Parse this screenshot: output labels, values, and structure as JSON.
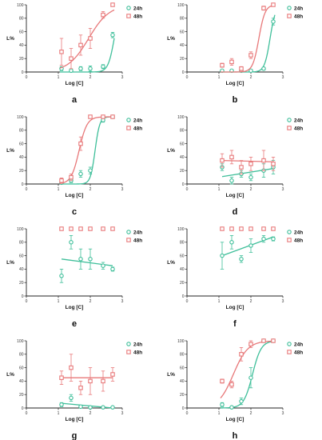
{
  "chart_data": [
    {
      "type": "scatter",
      "panel_label": "a",
      "ylabel": "L%",
      "xlabel": "Log [C]",
      "xlim": [
        0,
        3
      ],
      "ylim": [
        0,
        100
      ],
      "legend": "top-right",
      "colors": {
        "24h": "#3fbf9a",
        "48h": "#e8797a"
      },
      "series": [
        {
          "name": "24h",
          "x": [
            1.1,
            1.4,
            1.7,
            2.0,
            2.4,
            2.7
          ],
          "y": [
            5,
            2,
            5,
            5,
            8,
            55
          ],
          "err": [
            3,
            2,
            3,
            4,
            3,
            4
          ],
          "fit": {
            "kind": "sigmoid",
            "bottom": 0,
            "top": 100,
            "x50": 2.75,
            "slope": 4.5
          }
        },
        {
          "name": "48h",
          "x": [
            1.1,
            1.4,
            1.7,
            2.0,
            2.4,
            2.7
          ],
          "y": [
            30,
            20,
            40,
            50,
            85,
            100
          ],
          "err": [
            20,
            15,
            15,
            15,
            5,
            0
          ],
          "fit": {
            "kind": "sigmoid",
            "bottom": 0,
            "top": 100,
            "x50": 1.95,
            "slope": 1.35
          }
        }
      ]
    },
    {
      "type": "scatter",
      "panel_label": "b",
      "ylabel": "L%",
      "xlabel": "Log [C]",
      "xlim": [
        0,
        3
      ],
      "ylim": [
        0,
        100
      ],
      "legend": "top-right",
      "colors": {
        "24h": "#3fbf9a",
        "48h": "#e8797a"
      },
      "series": [
        {
          "name": "24h",
          "x": [
            1.1,
            1.4,
            1.7,
            2.0,
            2.4,
            2.7
          ],
          "y": [
            2,
            2,
            2,
            2,
            5,
            75
          ],
          "err": [
            1,
            1,
            1,
            1,
            2,
            5
          ],
          "fit": {
            "kind": "sigmoid",
            "bottom": 0,
            "top": 100,
            "x50": 2.6,
            "slope": 5.0
          }
        },
        {
          "name": "48h",
          "x": [
            1.1,
            1.4,
            1.7,
            2.0,
            2.4,
            2.7
          ],
          "y": [
            10,
            15,
            5,
            25,
            95,
            100
          ],
          "err": [
            3,
            5,
            3,
            5,
            3,
            0
          ],
          "fit": {
            "kind": "sigmoid",
            "bottom": 0,
            "top": 100,
            "x50": 2.25,
            "slope": 4.5
          }
        }
      ]
    },
    {
      "type": "scatter",
      "panel_label": "c",
      "ylabel": "L%",
      "xlabel": "Log [C]",
      "xlim": [
        0,
        3
      ],
      "ylim": [
        0,
        100
      ],
      "legend": "top-right",
      "colors": {
        "24h": "#3fbf9a",
        "48h": "#e8797a"
      },
      "series": [
        {
          "name": "24h",
          "x": [
            1.1,
            1.4,
            1.7,
            2.0,
            2.4,
            2.7
          ],
          "y": [
            2,
            5,
            15,
            20,
            95,
            100
          ],
          "err": [
            2,
            3,
            5,
            5,
            3,
            0
          ],
          "fit": {
            "kind": "sigmoid",
            "bottom": 0,
            "top": 100,
            "x50": 2.15,
            "slope": 6.0
          }
        },
        {
          "name": "48h",
          "x": [
            1.1,
            1.4,
            1.7,
            2.0,
            2.4,
            2.7
          ],
          "y": [
            5,
            10,
            60,
            100,
            100,
            100
          ],
          "err": [
            4,
            5,
            10,
            0,
            0,
            0
          ],
          "fit": {
            "kind": "sigmoid",
            "bottom": 0,
            "top": 100,
            "x50": 1.65,
            "slope": 3.5
          }
        }
      ]
    },
    {
      "type": "scatter",
      "panel_label": "d",
      "ylabel": "L%",
      "xlabel": "Log [C]",
      "xlim": [
        0,
        3
      ],
      "ylim": [
        0,
        100
      ],
      "legend": "top-right",
      "colors": {
        "24h": "#3fbf9a",
        "48h": "#e8797a"
      },
      "series": [
        {
          "name": "24h",
          "x": [
            1.1,
            1.4,
            1.7,
            2.0,
            2.4,
            2.7
          ],
          "y": [
            25,
            5,
            15,
            10,
            20,
            25
          ],
          "err": [
            5,
            5,
            5,
            5,
            10,
            10
          ],
          "fit": {
            "kind": "linear",
            "y_start": 11,
            "y_end": 23
          }
        },
        {
          "name": "48h",
          "x": [
            1.1,
            1.4,
            1.7,
            2.0,
            2.4,
            2.7
          ],
          "y": [
            35,
            40,
            25,
            30,
            35,
            30
          ],
          "err": [
            10,
            10,
            10,
            10,
            15,
            10
          ],
          "fit": {
            "kind": "linear",
            "y_start": 35,
            "y_end": 33
          }
        }
      ]
    },
    {
      "type": "scatter",
      "panel_label": "e",
      "ylabel": "L%",
      "xlabel": "Log [C]",
      "xlim": [
        0,
        3
      ],
      "ylim": [
        0,
        100
      ],
      "legend": "top-right",
      "colors": {
        "24h": "#3fbf9a",
        "48h": "#e8797a"
      },
      "series": [
        {
          "name": "24h",
          "x": [
            1.1,
            1.4,
            1.7,
            2.0,
            2.4,
            2.7
          ],
          "y": [
            30,
            80,
            55,
            55,
            45,
            40
          ],
          "err": [
            10,
            10,
            15,
            15,
            5,
            3
          ],
          "fit": {
            "kind": "linear",
            "y_start": 55,
            "y_end": 45
          }
        },
        {
          "name": "48h",
          "x": [
            1.1,
            1.4,
            1.7,
            2.0,
            2.4,
            2.7
          ],
          "y": [
            100,
            100,
            100,
            100,
            100,
            100
          ],
          "err": [
            0,
            0,
            0,
            0,
            0,
            0
          ],
          "fit": null
        }
      ]
    },
    {
      "type": "scatter",
      "panel_label": "f",
      "ylabel": "L%",
      "xlabel": "Log [C]",
      "xlim": [
        0,
        3
      ],
      "ylim": [
        0,
        100
      ],
      "legend": "top-right",
      "colors": {
        "24h": "#3fbf9a",
        "48h": "#e8797a"
      },
      "series": [
        {
          "name": "24h",
          "x": [
            1.1,
            1.4,
            1.7,
            2.0,
            2.4,
            2.7
          ],
          "y": [
            60,
            80,
            55,
            75,
            85,
            85
          ],
          "err": [
            20,
            10,
            5,
            10,
            5,
            3
          ],
          "fit": {
            "kind": "linear",
            "y_start": 60,
            "y_end": 88
          }
        },
        {
          "name": "48h",
          "x": [
            1.1,
            1.4,
            1.7,
            2.0,
            2.4,
            2.7
          ],
          "y": [
            100,
            100,
            100,
            100,
            100,
            100
          ],
          "err": [
            0,
            0,
            0,
            0,
            0,
            0
          ],
          "fit": null
        }
      ]
    },
    {
      "type": "scatter",
      "panel_label": "g",
      "ylabel": "L%",
      "xlabel": "Log [C]",
      "xlim": [
        0,
        3
      ],
      "ylim": [
        0,
        100
      ],
      "legend": "top-right",
      "colors": {
        "24h": "#3fbf9a",
        "48h": "#e8797a"
      },
      "series": [
        {
          "name": "24h",
          "x": [
            1.1,
            1.4,
            1.7,
            2.0,
            2.4,
            2.7
          ],
          "y": [
            5,
            15,
            2,
            1,
            1,
            1
          ],
          "err": [
            3,
            5,
            2,
            1,
            1,
            1
          ],
          "fit": {
            "kind": "linear",
            "y_start": 7,
            "y_end": 0
          }
        },
        {
          "name": "48h",
          "x": [
            1.1,
            1.4,
            1.7,
            2.0,
            2.4,
            2.7
          ],
          "y": [
            45,
            60,
            30,
            40,
            40,
            50
          ],
          "err": [
            10,
            20,
            10,
            20,
            15,
            10
          ],
          "fit": {
            "kind": "linear",
            "y_start": 45,
            "y_end": 45
          }
        }
      ]
    },
    {
      "type": "scatter",
      "panel_label": "h",
      "ylabel": "L%",
      "xlabel": "Log [C]",
      "xlim": [
        0,
        3
      ],
      "ylim": [
        0,
        100
      ],
      "legend": "top-right",
      "colors": {
        "24h": "#3fbf9a",
        "48h": "#e8797a"
      },
      "series": [
        {
          "name": "24h",
          "x": [
            1.1,
            1.4,
            1.7,
            2.0,
            2.4,
            2.7
          ],
          "y": [
            5,
            1,
            10,
            45,
            100,
            100
          ],
          "err": [
            3,
            1,
            5,
            15,
            0,
            0
          ],
          "fit": {
            "kind": "sigmoid",
            "bottom": 0,
            "top": 100,
            "x50": 2.05,
            "slope": 3.2
          }
        },
        {
          "name": "48h",
          "x": [
            1.1,
            1.4,
            1.7,
            2.0,
            2.4,
            2.7
          ],
          "y": [
            40,
            35,
            80,
            95,
            100,
            100
          ],
          "err": [
            3,
            5,
            10,
            5,
            0,
            0
          ],
          "fit": {
            "kind": "sigmoid",
            "bottom": 0,
            "top": 100,
            "x50": 1.45,
            "slope": 1.9
          }
        }
      ]
    }
  ]
}
